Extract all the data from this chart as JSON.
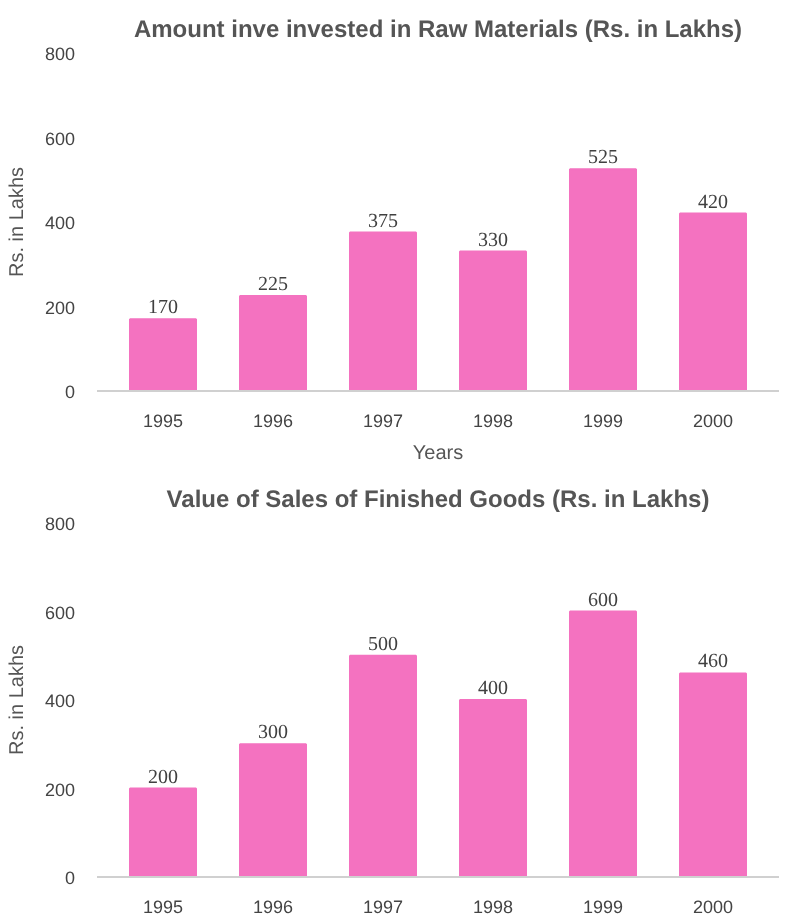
{
  "chart_data": [
    {
      "type": "bar",
      "title": "Amount inve invested in Raw Materials (Rs. in Lakhs)",
      "xlabel": "Years",
      "ylabel": "Rs. in Lakhs",
      "categories": [
        "1995",
        "1996",
        "1997",
        "1998",
        "1999",
        "2000"
      ],
      "values": [
        170,
        225,
        375,
        330,
        525,
        420
      ],
      "color": "#f472c0",
      "ylim": [
        0,
        800
      ],
      "yticks": [
        0,
        200,
        400,
        600,
        800
      ],
      "data_labels": true
    },
    {
      "type": "bar",
      "title": "Value of Sales of Finished Goods (Rs. in Lakhs)",
      "ylabel": "Rs. in Lakhs",
      "categories": [
        "1995",
        "1996",
        "1997",
        "1998",
        "1999",
        "2000"
      ],
      "values": [
        200,
        300,
        500,
        400,
        600,
        460
      ],
      "color": "#f472c0",
      "ylim": [
        0,
        800
      ],
      "yticks": [
        0,
        200,
        400,
        600,
        800
      ],
      "data_labels": true
    }
  ]
}
